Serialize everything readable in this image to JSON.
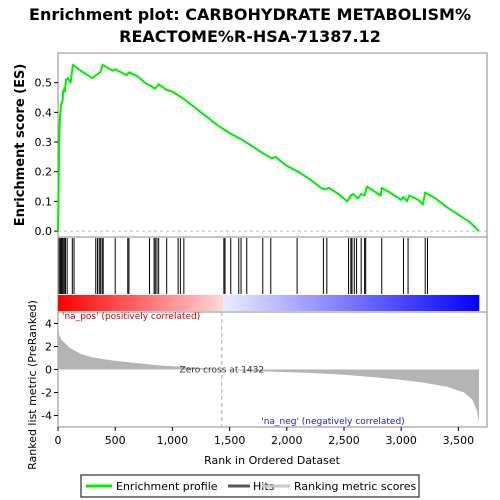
{
  "chart_data": {
    "type": "line",
    "title_line1": "Enrichment plot: CARBOHYDRATE METABOLISM%",
    "title_line2": "REACTOME%R-HSA-71387.12",
    "xlabel": "Rank in Ordered Dataset",
    "es_panel": {
      "ylabel": "Enrichment score (ES)",
      "ylim": [
        -0.02,
        0.6
      ],
      "yticks": [
        0.0,
        0.1,
        0.2,
        0.3,
        0.4,
        0.5
      ],
      "ytick_labels": [
        "0.0",
        "0.1",
        "0.2",
        "0.3",
        "0.4",
        "0.5"
      ],
      "series": [
        {
          "name": "Enrichment profile",
          "color": "#00ee00",
          "points": [
            [
              0,
              0.0
            ],
            [
              5,
              0.14
            ],
            [
              10,
              0.28
            ],
            [
              15,
              0.36
            ],
            [
              20,
              0.4
            ],
            [
              30,
              0.43
            ],
            [
              40,
              0.44
            ],
            [
              45,
              0.47
            ],
            [
              55,
              0.48
            ],
            [
              60,
              0.47
            ],
            [
              70,
              0.51
            ],
            [
              85,
              0.515
            ],
            [
              110,
              0.5
            ],
            [
              130,
              0.56
            ],
            [
              200,
              0.54
            ],
            [
              300,
              0.515
            ],
            [
              330,
              0.525
            ],
            [
              350,
              0.53
            ],
            [
              370,
              0.535
            ],
            [
              390,
              0.56
            ],
            [
              480,
              0.54
            ],
            [
              500,
              0.545
            ],
            [
              600,
              0.525
            ],
            [
              620,
              0.535
            ],
            [
              700,
              0.52
            ],
            [
              760,
              0.5
            ],
            [
              850,
              0.48
            ],
            [
              880,
              0.495
            ],
            [
              950,
              0.475
            ],
            [
              1000,
              0.47
            ],
            [
              1100,
              0.445
            ],
            [
              1200,
              0.415
            ],
            [
              1300,
              0.385
            ],
            [
              1400,
              0.355
            ],
            [
              1500,
              0.33
            ],
            [
              1600,
              0.31
            ],
            [
              1700,
              0.285
            ],
            [
              1800,
              0.26
            ],
            [
              1870,
              0.245
            ],
            [
              1900,
              0.25
            ],
            [
              2000,
              0.22
            ],
            [
              2100,
              0.2
            ],
            [
              2200,
              0.175
            ],
            [
              2300,
              0.145
            ],
            [
              2330,
              0.14
            ],
            [
              2370,
              0.145
            ],
            [
              2450,
              0.125
            ],
            [
              2530,
              0.1
            ],
            [
              2560,
              0.12
            ],
            [
              2580,
              0.125
            ],
            [
              2620,
              0.11
            ],
            [
              2650,
              0.125
            ],
            [
              2680,
              0.12
            ],
            [
              2700,
              0.15
            ],
            [
              2780,
              0.13
            ],
            [
              2820,
              0.12
            ],
            [
              2830,
              0.145
            ],
            [
              2900,
              0.13
            ],
            [
              3000,
              0.105
            ],
            [
              3020,
              0.115
            ],
            [
              3050,
              0.1
            ],
            [
              3070,
              0.12
            ],
            [
              3150,
              0.105
            ],
            [
              3190,
              0.09
            ],
            [
              3210,
              0.13
            ],
            [
              3300,
              0.11
            ],
            [
              3400,
              0.08
            ],
            [
              3500,
              0.055
            ],
            [
              3600,
              0.03
            ],
            [
              3680,
              0.0
            ]
          ]
        }
      ]
    },
    "hits_panel": {
      "hit_ranks": [
        10,
        20,
        28,
        36,
        45,
        55,
        65,
        80,
        125,
        140,
        330,
        345,
        360,
        370,
        385,
        395,
        500,
        610,
        620,
        800,
        840,
        850,
        865,
        880,
        950,
        1050,
        1070,
        1100,
        1450,
        1460,
        1510,
        1580,
        1600,
        1650,
        1790,
        1860,
        2090,
        2320,
        2350,
        2540,
        2560,
        2570,
        2590,
        2610,
        2650,
        2680,
        2690,
        2830,
        3020,
        3060,
        3210,
        3230
      ]
    },
    "ranked_metric_panel": {
      "ylabel": "Ranked list metric (PreRanked)",
      "ylim": [
        -5,
        5
      ],
      "yticks": [
        -4,
        -2,
        0,
        2,
        4
      ],
      "ytick_labels": [
        "-4",
        "-2",
        "0",
        "2",
        "4"
      ],
      "metric_points": [
        [
          0,
          4.2
        ],
        [
          10,
          3.0
        ],
        [
          30,
          2.6
        ],
        [
          60,
          2.3
        ],
        [
          100,
          1.9
        ],
        [
          200,
          1.35
        ],
        [
          300,
          1.05
        ],
        [
          500,
          0.75
        ],
        [
          700,
          0.55
        ],
        [
          900,
          0.35
        ],
        [
          1100,
          0.22
        ],
        [
          1300,
          0.1
        ],
        [
          1432,
          0.0
        ],
        [
          1600,
          -0.1
        ],
        [
          1900,
          -0.2
        ],
        [
          2200,
          -0.3
        ],
        [
          2500,
          -0.45
        ],
        [
          2800,
          -0.7
        ],
        [
          3000,
          -0.9
        ],
        [
          3200,
          -1.15
        ],
        [
          3400,
          -1.5
        ],
        [
          3550,
          -2.0
        ],
        [
          3620,
          -2.6
        ],
        [
          3660,
          -3.5
        ],
        [
          3680,
          -4.6
        ]
      ],
      "zero_cross_rank": 1432,
      "zero_cross_label": "Zero cross at 1432",
      "pos_label": "'na_pos' (positively correlated)",
      "neg_label": "'na_neg' (negatively correlated)"
    },
    "xlim": [
      0,
      3750
    ],
    "xticks": [
      0,
      500,
      1000,
      1500,
      2000,
      2500,
      3000,
      3500
    ],
    "xtick_labels": [
      "0",
      "500",
      "1,000",
      "1,500",
      "2,000",
      "2,500",
      "3,000",
      "3,500"
    ],
    "dataset_size": 3680,
    "legend": {
      "placement": "bottom",
      "entries": [
        {
          "label": "Enrichment profile",
          "color": "#00ee00"
        },
        {
          "label": "Hits",
          "color": "#555555"
        },
        {
          "label": "Ranking metric scores",
          "color": "#c8c8c8"
        }
      ]
    }
  }
}
